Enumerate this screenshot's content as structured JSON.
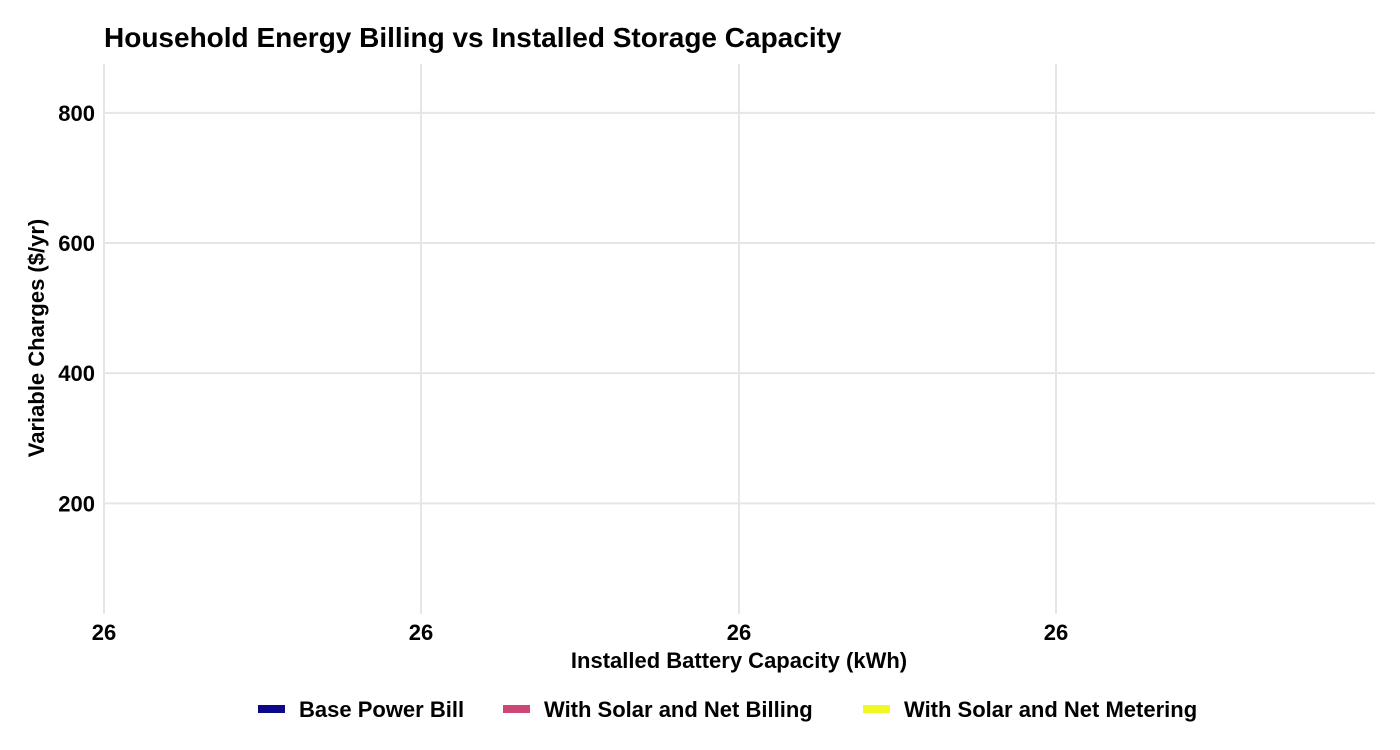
{
  "chart_data": {
    "type": "line",
    "title": "Household Energy Billing vs Installed Storage Capacity",
    "xlabel": "Installed Battery Capacity (kWh)",
    "ylabel": "Variable Charges ($/yr)",
    "x_tick_labels": [
      "26",
      "26",
      "26",
      "26"
    ],
    "y_ticks": [
      200,
      400,
      600,
      800
    ],
    "ylim": [
      30,
      875
    ],
    "grid": true,
    "legend_position": "bottom",
    "series": [
      {
        "name": "Base Power Bill",
        "color": "#0d0887",
        "x": [],
        "y": []
      },
      {
        "name": "With Solar and Net Billing",
        "color": "#cc4778",
        "x": [],
        "y": []
      },
      {
        "name": "With Solar and Net Metering",
        "color": "#f0f921",
        "x": [],
        "y": []
      }
    ]
  }
}
